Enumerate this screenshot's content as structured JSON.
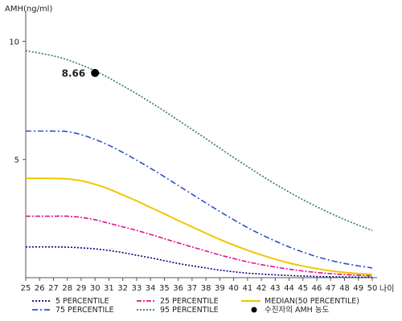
{
  "chart_data": {
    "type": "line",
    "ylabel": "AMH(ng/ml)",
    "xlabel": "나이",
    "xlim": [
      25,
      50
    ],
    "ylim": [
      0,
      11
    ],
    "yticks": [
      5,
      10
    ],
    "x": [
      25,
      26,
      27,
      28,
      29,
      30,
      31,
      32,
      33,
      34,
      35,
      36,
      37,
      38,
      39,
      40,
      41,
      42,
      43,
      44,
      45,
      46,
      47,
      48,
      49,
      50
    ],
    "series": [
      {
        "name": "5 PERCENTILE",
        "color": "#000080",
        "dash": "2,2",
        "values": [
          1.3,
          1.3,
          1.3,
          1.29,
          1.26,
          1.22,
          1.15,
          1.06,
          0.95,
          0.84,
          0.72,
          0.6,
          0.5,
          0.41,
          0.32,
          0.25,
          0.19,
          0.15,
          0.12,
          0.09,
          0.07,
          0.05,
          0.04,
          0.03,
          0.02,
          0.02
        ]
      },
      {
        "name": "25 PERCENTILE",
        "color": "#e0158c",
        "dash": "6,2,2,2",
        "values": [
          2.6,
          2.6,
          2.6,
          2.6,
          2.55,
          2.45,
          2.3,
          2.15,
          2.0,
          1.83,
          1.65,
          1.47,
          1.3,
          1.13,
          0.96,
          0.81,
          0.67,
          0.55,
          0.45,
          0.36,
          0.28,
          0.22,
          0.17,
          0.13,
          0.1,
          0.08
        ]
      },
      {
        "name": "MEDIAN(50 PERCENTILE)",
        "color": "#f2c500",
        "dash": "",
        "values": [
          4.2,
          4.2,
          4.2,
          4.18,
          4.1,
          3.95,
          3.75,
          3.5,
          3.25,
          2.97,
          2.7,
          2.42,
          2.15,
          1.88,
          1.62,
          1.38,
          1.16,
          0.96,
          0.78,
          0.62,
          0.49,
          0.38,
          0.29,
          0.22,
          0.17,
          0.14
        ]
      },
      {
        "name": "75 PERCENTILE",
        "color": "#2a4ecb",
        "dash": "7,3,2,3",
        "values": [
          6.2,
          6.2,
          6.2,
          6.18,
          6.05,
          5.85,
          5.6,
          5.3,
          4.97,
          4.63,
          4.27,
          3.9,
          3.53,
          3.16,
          2.8,
          2.45,
          2.12,
          1.82,
          1.55,
          1.3,
          1.08,
          0.89,
          0.73,
          0.6,
          0.5,
          0.41
        ]
      },
      {
        "name": "95 PERCENTILE",
        "color": "#2e7d4f",
        "dash": "2,2",
        "values": [
          9.6,
          9.5,
          9.38,
          9.22,
          9.0,
          8.75,
          8.45,
          8.12,
          7.78,
          7.42,
          7.05,
          6.66,
          6.27,
          5.88,
          5.48,
          5.08,
          4.7,
          4.32,
          3.96,
          3.62,
          3.3,
          3.0,
          2.72,
          2.46,
          2.22,
          2.0
        ]
      }
    ],
    "highlight": {
      "name": "수진자의 AMH 농도",
      "x": 30,
      "y": 8.66,
      "label": "8.66",
      "color": "#000000"
    },
    "grid": false,
    "legend_position": "bottom"
  }
}
